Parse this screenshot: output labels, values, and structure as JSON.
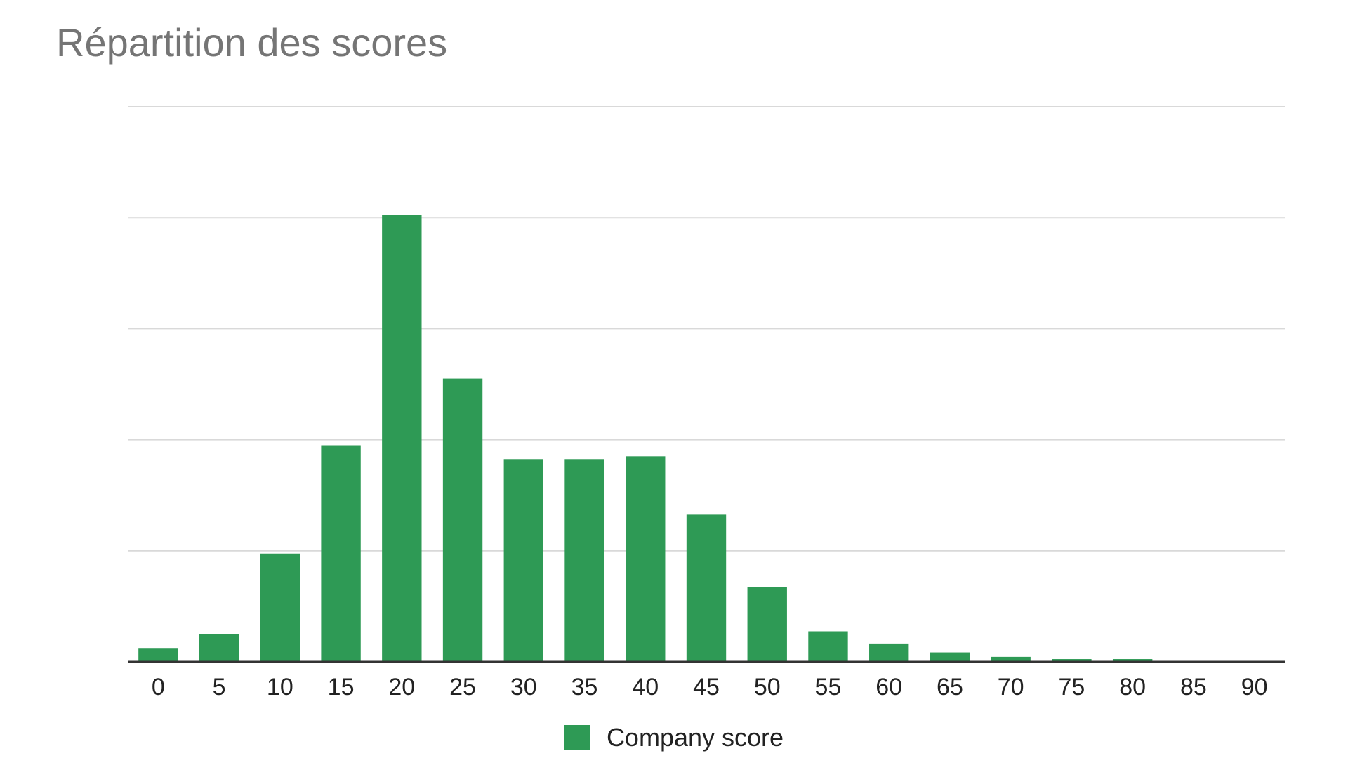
{
  "chart_data": {
    "type": "bar",
    "title": "Répartition des scores",
    "xlabel": "",
    "ylabel": "",
    "categories": [
      "0",
      "5",
      "10",
      "15",
      "20",
      "25",
      "30",
      "35",
      "40",
      "45",
      "50",
      "55",
      "60",
      "65",
      "70",
      "75",
      "80",
      "85",
      "90"
    ],
    "series": [
      {
        "name": "Company score",
        "color": "#2e9a55",
        "values": [
          2.5,
          5,
          19.5,
          39,
          80.5,
          51,
          36.5,
          36.5,
          37,
          26.5,
          13.5,
          5.5,
          3.3,
          1.7,
          0.9,
          0.5,
          0.5,
          0,
          0
        ]
      }
    ],
    "ylim": [
      0,
      100
    ],
    "y_gridlines": [
      20,
      40,
      60,
      80,
      100
    ],
    "y_tick_labels_shown": false,
    "grid": true,
    "legend": "bottom-center"
  }
}
